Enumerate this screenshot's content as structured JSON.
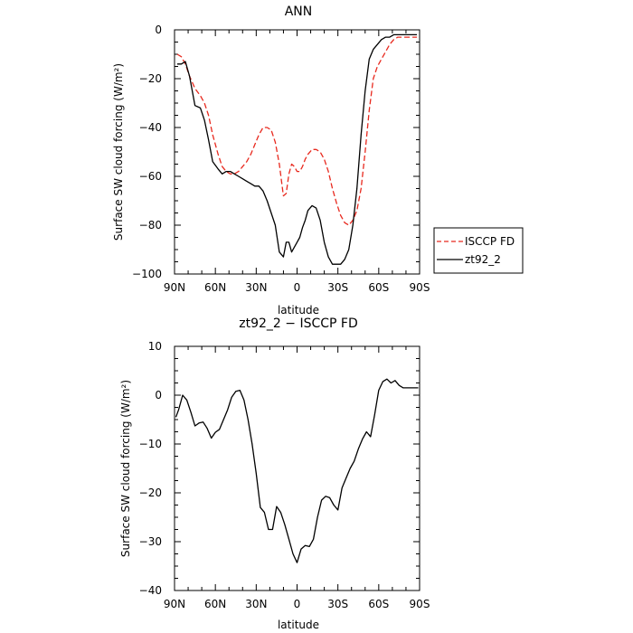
{
  "chart_data": [
    {
      "type": "line",
      "title": "ANN",
      "xlabel": "latitude",
      "ylabel": "Surface SW cloud forcing (W/m²)",
      "xlim": [
        90,
        -90
      ],
      "ylim": [
        -100,
        0
      ],
      "x_ticks": [
        "90N",
        "60N",
        "30N",
        "0",
        "30S",
        "60S",
        "90S"
      ],
      "y_ticks": [
        "0",
        "−20",
        "−40",
        "−60",
        "−80",
        "−100"
      ],
      "legend_position": "right",
      "series": [
        {
          "name": "ISCCP FD",
          "color": "#e8291e",
          "dash": "dashed",
          "x": [
            88,
            85,
            82,
            79,
            75,
            71,
            68,
            65,
            62,
            58,
            55,
            52,
            49,
            46,
            43,
            40,
            37,
            34,
            31,
            28,
            25,
            22,
            19,
            16,
            13,
            10,
            8,
            6,
            4,
            2,
            0,
            -2,
            -4,
            -6,
            -8,
            -11,
            -14,
            -17,
            -20,
            -23,
            -26,
            -29,
            -32,
            -35,
            -38,
            -41,
            -44,
            -47,
            -50,
            -53,
            -56,
            -59,
            -62,
            -65,
            -68,
            -71,
            -74,
            -77,
            -80,
            -83,
            -86,
            -88
          ],
          "y": [
            -10,
            -11,
            -14,
            -19,
            -24,
            -27,
            -30,
            -35,
            -43,
            -51,
            -56,
            -58,
            -59,
            -59,
            -58,
            -56,
            -54,
            -51,
            -47,
            -43,
            -40,
            -40,
            -41,
            -46,
            -55,
            -68,
            -67,
            -59,
            -55,
            -56,
            -58,
            -58,
            -56,
            -53,
            -51,
            -49,
            -49,
            -50,
            -53,
            -58,
            -65,
            -71,
            -76,
            -79,
            -80,
            -78,
            -74,
            -65,
            -50,
            -33,
            -20,
            -15,
            -12,
            -9,
            -6,
            -4,
            -3,
            -3,
            -3,
            -3,
            -3,
            -3
          ]
        },
        {
          "name": "zt92_2",
          "color": "#000000",
          "dash": "solid",
          "x": [
            88,
            85,
            82,
            79,
            75,
            71,
            68,
            65,
            62,
            58,
            55,
            52,
            49,
            46,
            43,
            40,
            37,
            34,
            31,
            28,
            25,
            22,
            19,
            16,
            13,
            10,
            8,
            6,
            4,
            2,
            0,
            -2,
            -4,
            -6,
            -8,
            -11,
            -14,
            -17,
            -20,
            -23,
            -26,
            -29,
            -32,
            -35,
            -38,
            -41,
            -44,
            -47,
            -50,
            -53,
            -56,
            -59,
            -62,
            -65,
            -68,
            -71,
            -74,
            -77,
            -80,
            -83,
            -86,
            -88
          ],
          "y": [
            -14,
            -14,
            -13,
            -19,
            -31,
            -32,
            -37,
            -45,
            -54,
            -57,
            -59,
            -58,
            -58,
            -59,
            -60,
            -61,
            -62,
            -63,
            -64,
            -64,
            -66,
            -70,
            -75,
            -80,
            -91,
            -93,
            -87,
            -87,
            -91,
            -89,
            -87,
            -85,
            -81,
            -78,
            -74,
            -72,
            -73,
            -78,
            -87,
            -93,
            -96,
            -96,
            -96,
            -94,
            -90,
            -80,
            -65,
            -43,
            -25,
            -12,
            -8,
            -6,
            -4,
            -3,
            -3,
            -2,
            -2,
            -2,
            -2,
            -2,
            -2,
            -2
          ]
        }
      ]
    },
    {
      "type": "line",
      "title": "zt92_2 − ISCCP FD",
      "xlabel": "latitude",
      "ylabel": "Surface SW cloud forcing (W/m²)",
      "xlim": [
        90,
        -90
      ],
      "ylim": [
        -40,
        10
      ],
      "x_ticks": [
        "90N",
        "60N",
        "30N",
        "0",
        "30S",
        "60S",
        "90S"
      ],
      "y_ticks": [
        "10",
        "0",
        "−10",
        "−20",
        "−30",
        "−40"
      ],
      "series": [
        {
          "color": "#000000",
          "x": [
            89,
            87,
            84,
            81,
            78,
            75,
            72,
            69,
            66,
            63,
            60,
            57,
            54,
            51,
            48,
            45,
            42,
            39,
            36,
            33,
            30,
            27,
            24,
            21,
            18,
            15,
            12,
            9,
            6,
            3,
            0,
            -3,
            -6,
            -9,
            -12,
            -15,
            -18,
            -21,
            -24,
            -27,
            -30,
            -33,
            -36,
            -39,
            -42,
            -45,
            -48,
            -51,
            -54,
            -57,
            -60,
            -63,
            -66,
            -69,
            -72,
            -75,
            -78,
            -81,
            -84,
            -87,
            -89
          ],
          "y": [
            -4.5,
            -3,
            0,
            -1,
            -3.5,
            -6.3,
            -5.7,
            -5.5,
            -6.8,
            -8.8,
            -7.6,
            -7,
            -5,
            -3,
            -0.4,
            0.8,
            1,
            -1,
            -5,
            -10,
            -16,
            -23,
            -24,
            -27.5,
            -27.5,
            -22.8,
            -24,
            -26.5,
            -29.5,
            -32.5,
            -34.3,
            -31.5,
            -30.8,
            -31,
            -29.5,
            -25,
            -21.5,
            -20.7,
            -21,
            -22.5,
            -23.5,
            -19,
            -17,
            -15,
            -13.5,
            -11,
            -9,
            -7.5,
            -8.5,
            -4,
            1,
            2.8,
            3.3,
            2.5,
            3,
            2,
            1.5,
            1.5,
            1.5,
            1.5,
            1.5
          ]
        }
      ]
    }
  ]
}
